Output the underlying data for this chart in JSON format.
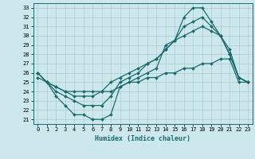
{
  "xlabel": "Humidex (Indice chaleur)",
  "bg_color": "#cce8ec",
  "grid_color": "#aacccc",
  "line_color": "#1a6b6e",
  "xlim": [
    -0.5,
    23.5
  ],
  "ylim": [
    20.5,
    33.5
  ],
  "xticks": [
    0,
    1,
    2,
    3,
    4,
    5,
    6,
    7,
    8,
    9,
    10,
    11,
    12,
    13,
    14,
    15,
    16,
    17,
    18,
    19,
    20,
    21,
    22,
    23
  ],
  "yticks": [
    21,
    22,
    23,
    24,
    25,
    26,
    27,
    28,
    29,
    30,
    31,
    32,
    33
  ],
  "series": [
    {
      "x": [
        0,
        1,
        2,
        3,
        4,
        5,
        6,
        7,
        8,
        9,
        10,
        11,
        12,
        13,
        14,
        15,
        16,
        17,
        18,
        19,
        20,
        21,
        22,
        23
      ],
      "y": [
        26,
        25,
        23.5,
        22.5,
        21.5,
        21.5,
        21,
        21,
        21.5,
        24.5,
        25,
        25.5,
        26,
        26.5,
        29,
        29.5,
        32,
        33,
        33,
        31.5,
        30,
        28,
        25.5,
        25
      ]
    },
    {
      "x": [
        0,
        1,
        2,
        3,
        4,
        5,
        6,
        7,
        8,
        9,
        10,
        11,
        12,
        13,
        14,
        15,
        16,
        17,
        18,
        19,
        20,
        21,
        22,
        23
      ],
      "y": [
        26,
        25,
        24,
        23.5,
        23,
        22.5,
        22.5,
        22.5,
        23.5,
        25,
        25.5,
        26,
        27,
        27.5,
        28.5,
        29.5,
        31,
        31.5,
        32,
        31,
        30,
        28,
        25.5,
        25
      ]
    },
    {
      "x": [
        0,
        1,
        2,
        3,
        4,
        5,
        6,
        7,
        8,
        9,
        10,
        11,
        12,
        13,
        14,
        15,
        16,
        17,
        18,
        19,
        20,
        21,
        22,
        23
      ],
      "y": [
        26,
        25,
        24.5,
        24,
        23.5,
        23.5,
        23.5,
        24,
        25,
        25.5,
        26,
        26.5,
        27,
        27.5,
        28.5,
        29.5,
        30,
        30.5,
        31,
        30.5,
        30,
        28.5,
        25.5,
        25
      ]
    },
    {
      "x": [
        0,
        1,
        2,
        3,
        4,
        5,
        6,
        7,
        8,
        9,
        10,
        11,
        12,
        13,
        14,
        15,
        16,
        17,
        18,
        19,
        20,
        21,
        22,
        23
      ],
      "y": [
        25.5,
        25,
        24.5,
        24,
        24,
        24,
        24,
        24,
        24,
        24.5,
        25,
        25,
        25.5,
        25.5,
        26,
        26,
        26.5,
        26.5,
        27,
        27,
        27.5,
        27.5,
        25,
        25
      ]
    }
  ]
}
